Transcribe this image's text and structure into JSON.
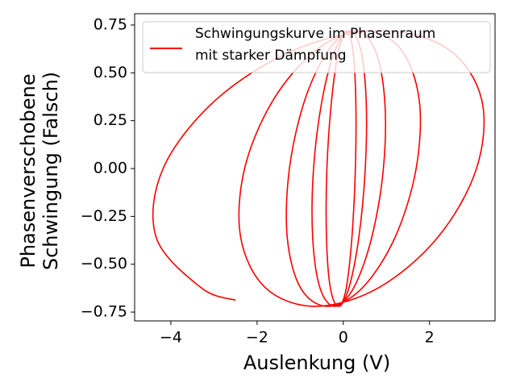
{
  "chart_data": {
    "type": "line",
    "xlabel": "Auslenkung (V)",
    "ylabel": [
      "Phasenverschobene",
      "Schwingung (Falsch)"
    ],
    "xlim": [
      -4.84,
      3.52
    ],
    "ylim": [
      -0.796,
      0.809
    ],
    "xticks": [
      {
        "value": -4,
        "label": "−4"
      },
      {
        "value": -2,
        "label": "−2"
      },
      0,
      2
    ],
    "yticks": [
      {
        "value": -0.75,
        "label": "−0.75"
      },
      {
        "value": -0.5,
        "label": "−0.50"
      },
      {
        "value": -0.25,
        "label": "−0.25"
      },
      {
        "value": 0,
        "label": "0.00"
      },
      0.25,
      {
        "value": 0.5,
        "label": "0.50"
      },
      0.75
    ],
    "grid": false,
    "legend": "upper right",
    "series": [
      {
        "name": "Schwingungskurve im Phasenraum\nmit starker Dämpfung",
        "color": "#ff0000",
        "x": [
          -2.5,
          -3.29,
          -4.34,
          -4.18,
          -2.95,
          -1.09,
          0.88,
          2.43,
          3.21,
          3.09,
          2.19,
          0.81,
          -0.65,
          -1.8,
          -2.38,
          -2.29,
          -1.62,
          -0.6,
          0.48,
          1.33,
          1.76,
          1.69,
          1.2,
          0.44,
          -0.36,
          -0.99,
          -1.3,
          -1.25,
          -0.89,
          -0.33,
          0.26,
          0.73,
          0.96,
          0.93,
          0.66,
          0.24,
          -0.2,
          -0.54,
          -0.71,
          -0.69,
          -0.49,
          -0.18,
          0.14,
          0.4,
          0.53,
          0.51,
          0.36,
          0.13,
          -0.11,
          -0.3,
          -0.39,
          -0.38,
          -0.27,
          -0.1,
          0.08,
          0.22,
          0.29,
          0.28,
          0.2,
          0.07,
          -0.06
        ],
        "values": [
          -0.688,
          -0.624,
          -0.36,
          0,
          0.36,
          0.624,
          0.72,
          0.624,
          0.36,
          0,
          -0.36,
          -0.624,
          -0.72,
          -0.624,
          -0.36,
          0,
          0.36,
          0.624,
          0.72,
          0.624,
          0.36,
          0,
          -0.36,
          -0.624,
          -0.72,
          -0.624,
          -0.36,
          0,
          0.36,
          0.624,
          0.72,
          0.624,
          0.36,
          0,
          -0.36,
          -0.624,
          -0.72,
          -0.624,
          -0.36,
          0,
          0.36,
          0.624,
          0.72,
          0.624,
          0.36,
          0,
          -0.36,
          -0.624,
          -0.72,
          -0.624,
          -0.36,
          0,
          0.36,
          0.624,
          0.72,
          0.624,
          0.36,
          0,
          -0.36,
          -0.624,
          -0.72
        ]
      }
    ]
  }
}
